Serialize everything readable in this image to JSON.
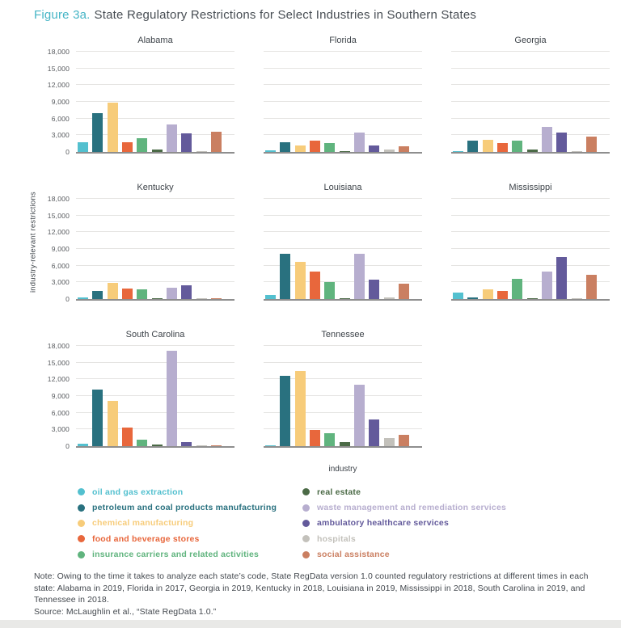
{
  "title": {
    "figure_label": "Figure 3a.",
    "text": "State Regulatory Restrictions for Select Industries in Southern States"
  },
  "chart_data": {
    "type": "bar",
    "title": "State Regulatory Restrictions for Select Industries in Southern States",
    "xlabel": "industry",
    "ylabel": "industry-relevant restrictions",
    "ylim": [
      0,
      18000
    ],
    "yticks": [
      0,
      3000,
      6000,
      9000,
      12000,
      15000,
      18000
    ],
    "ytick_labels": [
      "0",
      "3,000",
      "6,000",
      "9,000",
      "12,000",
      "15,000",
      "18,000"
    ],
    "grid": true,
    "legend_position": "bottom",
    "categories": [
      "oil and gas extraction",
      "petroleum and coal products manufacturing",
      "chemical manufacturing",
      "food and beverage stores",
      "insurance carriers and related activities",
      "real estate",
      "waste management and remediation services",
      "ambulatory healthcare services",
      "hospitals",
      "social assistance"
    ],
    "colors": [
      "#53c0cf",
      "#29717f",
      "#f7cc7a",
      "#e8673c",
      "#60b47e",
      "#4b6a46",
      "#b7aecf",
      "#635a9b",
      "#c3c1bb",
      "#ca7f61"
    ],
    "series": [
      {
        "name": "Alabama",
        "values": [
          1800,
          7000,
          8800,
          1700,
          2500,
          400,
          5000,
          3400,
          200,
          3700
        ]
      },
      {
        "name": "Florida",
        "values": [
          300,
          1800,
          1100,
          2000,
          1600,
          200,
          3500,
          1200,
          500,
          1000
        ]
      },
      {
        "name": "Georgia",
        "values": [
          150,
          2000,
          2200,
          1600,
          2100,
          400,
          4500,
          3500,
          150,
          2700
        ]
      },
      {
        "name": "Kentucky",
        "values": [
          300,
          1400,
          2900,
          1900,
          1700,
          100,
          2000,
          2400,
          200,
          50
        ]
      },
      {
        "name": "Louisiana",
        "values": [
          700,
          8200,
          6700,
          5000,
          3000,
          100,
          8100,
          3500,
          300,
          2700
        ]
      },
      {
        "name": "Mississippi",
        "values": [
          1100,
          300,
          1700,
          1400,
          3600,
          100,
          5000,
          7500,
          200,
          4400
        ]
      },
      {
        "name": "South Carolina",
        "values": [
          500,
          10100,
          8200,
          3300,
          1200,
          300,
          17200,
          800,
          100,
          50
        ]
      },
      {
        "name": "Tennessee",
        "values": [
          200,
          12600,
          13500,
          2900,
          2300,
          700,
          11000,
          4800,
          1500,
          2100
        ]
      }
    ]
  },
  "note": {
    "body": "Note: Owing to the time it takes to analyze each state’s code, State RegData version 1.0 counted regulatory restrictions at different times in each state: Alabama in 2019, Florida in 2017, Georgia in 2019, Kentucky in 2018, Louisiana in 2019, Mississippi in 2018, South Carolina in 2019, and Tennessee in 2018.",
    "source": "Source: McLaughlin et al., “State RegData 1.0.”"
  }
}
